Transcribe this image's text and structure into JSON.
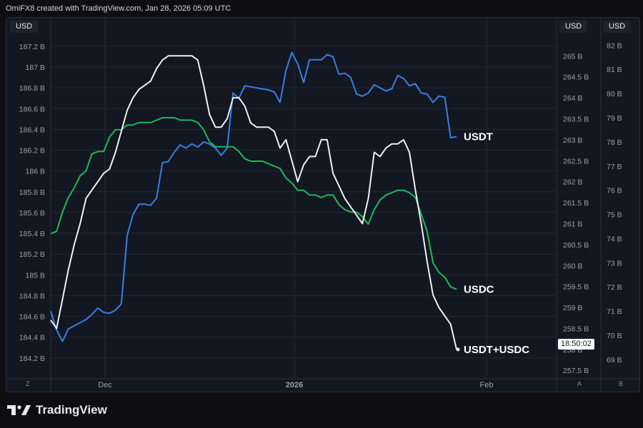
{
  "header": {
    "credit": "OmiFX8 created with TradingView.com, Jan 28, 2026 05:09 UTC"
  },
  "scales": {
    "left_currency": "USD",
    "right1_currency": "USD",
    "right2_currency": "USD",
    "time_tag": "18:50:02",
    "corner_left": "Z",
    "corner_right1": "A",
    "corner_right2": "B"
  },
  "footer": {
    "brand": "TradingView"
  },
  "colors": {
    "usdt": "#3a7ee0",
    "usdc": "#1db954",
    "total": "#f0f0f0",
    "grid": "#232836",
    "panel": "#131722",
    "axis_text": "#9aa0ab"
  },
  "chart_data": {
    "type": "line",
    "x_ticks": [
      "Dec",
      "2026",
      "Feb"
    ],
    "axes": {
      "left": {
        "label": "USD",
        "ylim": [
          184.0,
          187.35
        ],
        "ticks": [
          "184.2 B",
          "184.4 B",
          "184.6 B",
          "184.8 B",
          "185 B",
          "185.2 B",
          "185.4 B",
          "185.6 B",
          "185.8 B",
          "186 B",
          "186.2 B",
          "186.4 B",
          "186.6 B",
          "186.8 B",
          "187 B",
          "187.2 B"
        ],
        "tick_values": [
          184.2,
          184.4,
          184.6,
          184.8,
          185.0,
          185.2,
          185.4,
          185.6,
          185.8,
          186.0,
          186.2,
          186.4,
          186.6,
          186.8,
          187.0,
          187.2
        ]
      },
      "right1": {
        "label": "USD",
        "ylim": [
          257.3,
          265.6
        ],
        "ticks": [
          "257.5 B",
          "258 B",
          "258.5 B",
          "259 B",
          "259.5 B",
          "260 B",
          "260.5 B",
          "261 B",
          "261.5 B",
          "262 B",
          "262.5 B",
          "263 B",
          "263.5 B",
          "264 B",
          "264.5 B",
          "265 B"
        ],
        "tick_values": [
          257.5,
          258,
          258.5,
          259,
          259.5,
          260,
          260.5,
          261,
          261.5,
          262,
          262.5,
          263,
          263.5,
          264,
          264.5,
          265
        ]
      },
      "right2": {
        "label": "USD",
        "ylim": [
          68.2,
          82.6
        ],
        "ticks": [
          "68 B",
          "69 B",
          "70 B",
          "71 B",
          "72 B",
          "73 B",
          "74 B",
          "75 B",
          "76 B",
          "77 B",
          "78 B",
          "79 B",
          "80 B",
          "81 B",
          "82 B"
        ],
        "tick_values": [
          68,
          69,
          70,
          71,
          72,
          73,
          74,
          75,
          76,
          77,
          78,
          79,
          80,
          81,
          82
        ]
      }
    },
    "series": [
      {
        "name": "USDT",
        "axis": "left",
        "color": "#3a7ee0",
        "values": [
          184.65,
          184.47,
          184.36,
          184.48,
          184.51,
          184.54,
          184.57,
          184.62,
          184.68,
          184.64,
          184.63,
          184.66,
          184.72,
          185.38,
          185.58,
          185.68,
          185.68,
          185.67,
          185.74,
          186.08,
          186.09,
          186.18,
          186.25,
          186.22,
          186.26,
          186.23,
          186.28,
          186.26,
          186.22,
          186.15,
          186.22,
          186.75,
          186.7,
          186.82,
          186.81,
          186.8,
          186.79,
          186.78,
          186.76,
          186.66,
          186.97,
          187.14,
          187.03,
          186.85,
          187.07,
          187.07,
          187.07,
          187.12,
          187.1,
          186.93,
          186.94,
          186.9,
          186.74,
          186.72,
          186.75,
          186.83,
          186.8,
          186.77,
          186.79,
          186.92,
          186.89,
          186.82,
          186.84,
          186.75,
          186.74,
          186.66,
          186.72,
          186.71,
          186.32,
          186.33
        ]
      },
      {
        "name": "USDC",
        "axis": "right2",
        "color": "#1db954",
        "values": [
          74.2,
          74.3,
          75.1,
          75.7,
          76.1,
          76.6,
          76.8,
          77.5,
          77.6,
          77.6,
          78.2,
          78.5,
          78.5,
          78.7,
          78.7,
          78.8,
          78.8,
          78.8,
          78.9,
          79.0,
          79.0,
          79.0,
          78.9,
          78.9,
          78.9,
          78.8,
          78.5,
          78.0,
          77.8,
          77.8,
          77.8,
          77.8,
          77.6,
          77.3,
          77.2,
          77.2,
          77.2,
          77.1,
          77.0,
          76.9,
          76.5,
          76.3,
          76.0,
          76.0,
          75.8,
          75.8,
          75.7,
          75.8,
          75.8,
          75.4,
          75.2,
          75.1,
          75.1,
          74.9,
          74.6,
          75.2,
          75.6,
          75.8,
          75.9,
          76.0,
          76.0,
          75.9,
          75.7,
          75.0,
          74.3,
          73.0,
          72.6,
          72.4,
          72.0,
          71.9
        ]
      },
      {
        "name": "USDT+USDC",
        "axis": "right1",
        "color": "#f0f0f0",
        "values": [
          258.7,
          258.5,
          259.2,
          259.9,
          260.5,
          261.0,
          261.6,
          261.8,
          262.0,
          262.2,
          262.3,
          262.7,
          263.2,
          263.7,
          264.0,
          264.2,
          264.3,
          264.4,
          264.7,
          264.9,
          265.0,
          265.0,
          265.0,
          265.0,
          265.0,
          264.9,
          264.3,
          263.6,
          263.3,
          263.3,
          263.5,
          264.0,
          264.0,
          263.8,
          263.4,
          263.3,
          263.3,
          263.3,
          263.2,
          262.8,
          263.0,
          262.5,
          262.0,
          262.4,
          262.6,
          262.6,
          263.0,
          263.0,
          262.2,
          261.9,
          261.6,
          261.4,
          261.2,
          261.0,
          261.6,
          262.7,
          262.6,
          262.8,
          262.9,
          262.9,
          263.0,
          262.7,
          261.8,
          261.0,
          260.1,
          259.3,
          259.0,
          258.8,
          258.6,
          258.0
        ]
      }
    ]
  }
}
